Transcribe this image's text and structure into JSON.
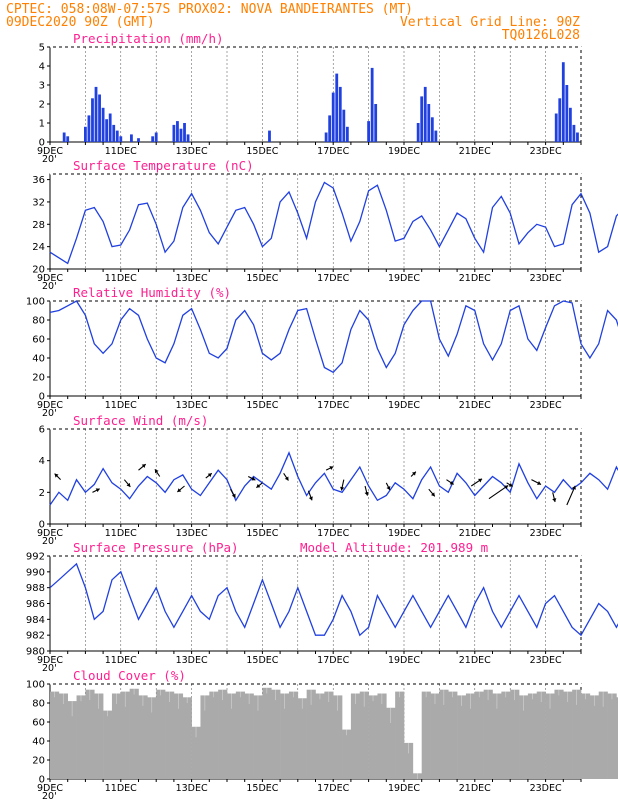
{
  "header": {
    "line1_left": "CPTEC:   058:08W-07:57S   PROX02: NOVA BANDEIRANTES (MT)",
    "line2_left": "09DEC2020 90Z (GMT)",
    "line2_right": "Vertical Grid Line: 90Z",
    "line3_right": "TQ0126L028"
  },
  "colors": {
    "header": "#ff8000",
    "title": "#ff2090",
    "series": "#2040e0",
    "cloud": "#aaaaaa",
    "grid": "#000000"
  },
  "x_axis": {
    "date_labels": [
      "9DEC",
      "11DEC",
      "13DEC",
      "15DEC",
      "17DEC",
      "19DEC",
      "21DEC",
      "23DEC"
    ],
    "truncated_year_label": "20'",
    "start": "09DEC2020",
    "end": "24DEC2020"
  },
  "chart_data": [
    {
      "id": "precip",
      "type": "bar",
      "title": "Precipitation (mm/h)",
      "ylim": [
        0,
        5
      ],
      "yticks": [
        0,
        1,
        2,
        3,
        4,
        5
      ],
      "x_unit": "days since 09DEC2020",
      "x": [
        0.4,
        0.5,
        1.0,
        1.1,
        1.2,
        1.3,
        1.4,
        1.5,
        1.6,
        1.7,
        1.8,
        1.9,
        2.0,
        2.3,
        2.5,
        2.9,
        3.0,
        3.5,
        3.6,
        3.7,
        3.8,
        3.9,
        6.2,
        7.8,
        7.9,
        8.0,
        8.1,
        8.2,
        8.3,
        8.4,
        9.0,
        9.1,
        9.2,
        10.4,
        10.5,
        10.6,
        10.7,
        10.8,
        10.9,
        14.3,
        14.4,
        14.5,
        14.6,
        14.7,
        14.8,
        14.9
      ],
      "values": [
        0.5,
        0.3,
        0.8,
        1.4,
        2.3,
        2.9,
        2.5,
        1.8,
        1.2,
        1.5,
        0.9,
        0.6,
        0.3,
        0.4,
        0.2,
        0.3,
        0.5,
        0.9,
        1.1,
        0.7,
        1.0,
        0.4,
        0.6,
        0.5,
        1.4,
        2.6,
        3.6,
        2.9,
        1.7,
        0.8,
        1.1,
        3.9,
        2.0,
        1.0,
        2.4,
        2.9,
        2.0,
        1.3,
        0.6,
        1.5,
        2.3,
        4.2,
        3.0,
        1.8,
        0.9,
        0.5
      ]
    },
    {
      "id": "temp",
      "type": "line",
      "title": "Surface Temperature (nC)",
      "ylim": [
        20,
        37
      ],
      "yticks": [
        20,
        24,
        28,
        32,
        36
      ],
      "x_unit": "days since 09DEC2020",
      "x_step": 0.25,
      "values": [
        23.0,
        22.0,
        21.0,
        25.5,
        30.5,
        31.0,
        28.5,
        24.0,
        24.3,
        27.0,
        31.5,
        31.8,
        28.0,
        23.0,
        25.0,
        31.0,
        33.5,
        30.5,
        26.5,
        24.5,
        27.5,
        30.5,
        31.0,
        28.0,
        24.0,
        25.5,
        32.0,
        33.8,
        30.0,
        25.5,
        32.0,
        35.5,
        34.5,
        30.0,
        25.0,
        28.5,
        34.0,
        35.0,
        30.5,
        25.0,
        25.5,
        28.5,
        29.5,
        27.0,
        24.0,
        27.0,
        30.0,
        29.0,
        25.5,
        23.0,
        31.0,
        33.0,
        30.0,
        24.5,
        26.5,
        28.0,
        27.5,
        24.0,
        24.5,
        31.5,
        33.5,
        30.0,
        23.0,
        24.0,
        29.5,
        31.0,
        28.0,
        23.5,
        26.0,
        36.0,
        33.5,
        28.0,
        27.0,
        31.5,
        31.0,
        28.0,
        26.0,
        24.5,
        27.5,
        31.5,
        30.5,
        28.0
      ]
    },
    {
      "id": "rh",
      "type": "line",
      "title": "Relative Humidity (%)",
      "ylim": [
        0,
        100
      ],
      "yticks": [
        0,
        20,
        40,
        60,
        80,
        100
      ],
      "x_unit": "days since 09DEC2020",
      "x_step": 0.25,
      "values": [
        88,
        90,
        95,
        100,
        85,
        55,
        45,
        55,
        80,
        92,
        85,
        60,
        40,
        35,
        55,
        85,
        92,
        70,
        45,
        40,
        50,
        80,
        90,
        75,
        45,
        38,
        45,
        70,
        90,
        92,
        60,
        30,
        25,
        35,
        70,
        90,
        80,
        50,
        30,
        45,
        75,
        90,
        100,
        100,
        60,
        42,
        65,
        95,
        90,
        55,
        38,
        55,
        90,
        95,
        60,
        48,
        72,
        95,
        100,
        98,
        55,
        40,
        55,
        90,
        80,
        50,
        40,
        60,
        90,
        88,
        50,
        40,
        55,
        85,
        80,
        50,
        40,
        50,
        65,
        40,
        42,
        60
      ]
    },
    {
      "id": "wind",
      "type": "line",
      "title": "Surface Wind (m/s)",
      "ylim": [
        0,
        6
      ],
      "yticks": [
        0,
        2,
        4,
        6
      ],
      "x_unit": "days since 09DEC2020",
      "x_step": 0.25,
      "values": [
        1.2,
        2.0,
        1.5,
        2.8,
        2.0,
        2.5,
        3.5,
        2.6,
        2.2,
        1.6,
        2.4,
        3.0,
        2.6,
        2.0,
        2.8,
        3.1,
        2.2,
        1.8,
        2.6,
        3.4,
        2.8,
        1.5,
        2.4,
        3.0,
        2.6,
        2.2,
        3.2,
        4.5,
        3.0,
        1.8,
        2.6,
        3.2,
        2.2,
        2.0,
        2.8,
        3.6,
        2.4,
        1.5,
        1.8,
        2.6,
        2.2,
        1.6,
        2.8,
        3.6,
        2.4,
        2.0,
        3.2,
        2.6,
        1.8,
        2.4,
        3.0,
        2.6,
        2.0,
        3.8,
        2.6,
        1.6,
        2.4,
        2.0,
        2.8,
        2.2,
        2.6,
        3.2,
        2.8,
        2.2,
        3.6,
        2.6,
        2.8,
        3.4,
        2.6,
        2.4,
        1.8,
        2.6,
        3.0,
        3.4,
        2.8,
        2.6,
        2.2,
        3.0,
        2.8,
        2.4,
        3.4,
        5.2,
        3.0
      ],
      "vectors": [
        [
          0.3,
          2.8,
          -0.5,
          0.5
        ],
        [
          1.2,
          2.0,
          0.6,
          0.3
        ],
        [
          2.1,
          2.8,
          0.5,
          -0.6
        ],
        [
          2.5,
          3.4,
          0.6,
          0.5
        ],
        [
          3.1,
          3.0,
          -0.4,
          0.6
        ],
        [
          3.8,
          2.4,
          -0.6,
          -0.5
        ],
        [
          4.4,
          2.9,
          0.5,
          0.4
        ],
        [
          5.1,
          2.2,
          0.4,
          -0.7
        ],
        [
          5.6,
          3.0,
          0.6,
          -0.3
        ],
        [
          6.0,
          2.6,
          -0.5,
          -0.4
        ],
        [
          6.6,
          3.2,
          0.4,
          -0.6
        ],
        [
          7.3,
          2.1,
          0.3,
          -0.8
        ],
        [
          7.8,
          3.4,
          0.6,
          0.3
        ],
        [
          8.3,
          2.8,
          -0.2,
          -0.9
        ],
        [
          8.9,
          2.4,
          0.2,
          -0.8
        ],
        [
          9.5,
          2.6,
          0.3,
          -0.6
        ],
        [
          10.2,
          3.0,
          0.4,
          0.4
        ],
        [
          10.7,
          2.2,
          0.5,
          -0.6
        ],
        [
          11.2,
          2.8,
          0.6,
          -0.4
        ],
        [
          11.9,
          2.4,
          0.9,
          0.6
        ],
        [
          12.4,
          1.6,
          1.6,
          1.1
        ],
        [
          12.9,
          2.6,
          0.5,
          -0.3
        ],
        [
          13.6,
          2.8,
          0.8,
          -0.4
        ],
        [
          14.2,
          2.0,
          0.2,
          -0.8
        ],
        [
          14.6,
          1.2,
          0.7,
          1.6
        ]
      ]
    },
    {
      "id": "pres",
      "type": "line",
      "title": "Surface Pressure (hPa)",
      "ylim": [
        980,
        992
      ],
      "yticks": [
        980,
        982,
        984,
        986,
        988,
        990,
        992
      ],
      "x_unit": "days since 09DEC2020",
      "x_step": 0.25,
      "values": [
        988,
        989,
        990,
        991,
        988,
        984,
        985,
        989,
        990,
        987,
        984,
        986,
        988,
        985,
        983,
        985,
        987,
        985,
        984,
        987,
        988,
        985,
        983,
        986,
        989,
        986,
        983,
        985,
        988,
        985,
        982,
        982,
        984,
        987,
        985,
        982,
        983,
        987,
        985,
        983,
        985,
        987,
        985,
        983,
        985,
        987,
        985,
        983,
        986,
        988,
        985,
        983,
        985,
        987,
        985,
        983,
        986,
        987,
        985,
        983,
        982,
        984,
        986,
        985,
        983,
        985,
        987,
        984,
        981,
        985,
        987,
        985,
        983,
        983,
        985,
        987,
        986,
        983,
        983,
        986,
        984,
        981,
        982
      ]
    },
    {
      "id": "cloud",
      "type": "area",
      "title": "Cloud Cover (%)",
      "ylim": [
        0,
        100
      ],
      "yticks": [
        0,
        20,
        40,
        60,
        80,
        100
      ],
      "x_unit": "days since 09DEC2020",
      "x_step": 0.25,
      "values": [
        92,
        90,
        82,
        88,
        94,
        90,
        72,
        90,
        92,
        95,
        88,
        86,
        94,
        92,
        90,
        86,
        55,
        88,
        92,
        94,
        90,
        92,
        90,
        88,
        96,
        94,
        90,
        92,
        85,
        94,
        90,
        92,
        88,
        52,
        90,
        92,
        88,
        90,
        75,
        92,
        38,
        6,
        92,
        90,
        94,
        92,
        88,
        90,
        92,
        94,
        90,
        92,
        94,
        88,
        90,
        92,
        90,
        94,
        92,
        94,
        90,
        88,
        92,
        90,
        86,
        92,
        94,
        90,
        92,
        94,
        92,
        90,
        92,
        94,
        90,
        94,
        92,
        90,
        88,
        92,
        94,
        92,
        90
      ]
    }
  ],
  "annotations": {
    "model_altitude": "Model Altitude: 201.989 m"
  }
}
